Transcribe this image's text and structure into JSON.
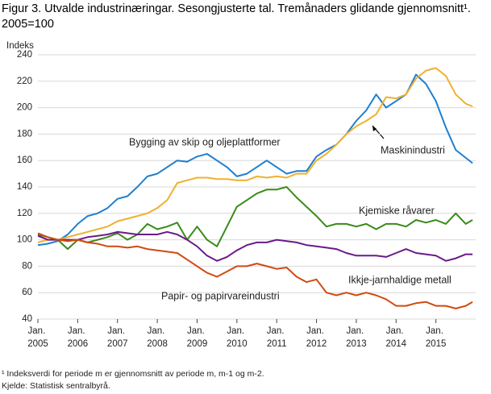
{
  "chart_data": {
    "type": "line",
    "title": "Figur 3. Utvalde industrinæringar. Sesongjusterte tal. Tremånaders glidande gjennomsnitt¹. 2005=100",
    "y_label": "Indeks",
    "footnote": "¹ Indeksverdi for periode m er gjennomsnitt av periode m, m-1 og m-2.",
    "source": "Kjelde: Statistisk sentralbyrå.",
    "x": [
      2005,
      2005.25,
      2005.5,
      2005.75,
      2006,
      2006.25,
      2006.5,
      2006.75,
      2007,
      2007.25,
      2007.5,
      2007.75,
      2008,
      2008.25,
      2008.5,
      2008.75,
      2009,
      2009.25,
      2009.5,
      2009.75,
      2010,
      2010.25,
      2010.5,
      2010.75,
      2011,
      2011.25,
      2011.5,
      2011.75,
      2012,
      2012.25,
      2012.5,
      2012.75,
      2013,
      2013.25,
      2013.5,
      2013.75,
      2014,
      2014.25,
      2014.5,
      2014.75,
      2015,
      2015.25,
      2015.5,
      2015.75,
      2015.92
    ],
    "xlim": [
      2005,
      2016
    ],
    "xticks": [
      {
        "value": 2005,
        "label": "Jan. 2005"
      },
      {
        "value": 2006,
        "label": "Jan. 2006"
      },
      {
        "value": 2007,
        "label": "Jan. 2007"
      },
      {
        "value": 2008,
        "label": "Jan. 2008"
      },
      {
        "value": 2009,
        "label": "Jan. 2009"
      },
      {
        "value": 2010,
        "label": "Jan. 2010"
      },
      {
        "value": 2011,
        "label": "Jan. 2011"
      },
      {
        "value": 2012,
        "label": "Jan. 2012"
      },
      {
        "value": 2013,
        "label": "Jan. 2013"
      },
      {
        "value": 2014,
        "label": "Jan. 2014"
      },
      {
        "value": 2015,
        "label": "Jan. 2015"
      }
    ],
    "ylim": [
      40,
      240
    ],
    "yticks": [
      40,
      60,
      80,
      100,
      120,
      140,
      160,
      180,
      200,
      220,
      240
    ],
    "grid": true,
    "series": [
      {
        "name": "Maskinindustri",
        "color": "#1f7fd0",
        "values": [
          96,
          97,
          99,
          104,
          112,
          118,
          120,
          124,
          131,
          133,
          140,
          148,
          150,
          155,
          160,
          159,
          163,
          165,
          160,
          155,
          148,
          150,
          155,
          160,
          155,
          150,
          152,
          152,
          163,
          168,
          172,
          180,
          190,
          198,
          210,
          200,
          205,
          210,
          225,
          218,
          205,
          185,
          168,
          162,
          158
        ]
      },
      {
        "name": "Bygging av skip og oljeplattformer",
        "color": "#f0b030",
        "values": [
          98,
          100,
          100,
          102,
          104,
          106,
          108,
          110,
          114,
          116,
          118,
          120,
          124,
          130,
          143,
          145,
          147,
          147,
          146,
          146,
          145,
          145,
          148,
          147,
          148,
          147,
          150,
          150,
          160,
          165,
          172,
          180,
          186,
          190,
          195,
          208,
          207,
          210,
          222,
          228,
          230,
          224,
          210,
          203,
          201
        ]
      },
      {
        "name": "Kjemiske  råvarer",
        "color": "#3a8a1a",
        "values": [
          104,
          102,
          100,
          93,
          100,
          98,
          100,
          102,
          105,
          100,
          104,
          112,
          108,
          110,
          113,
          100,
          110,
          100,
          95,
          110,
          125,
          130,
          135,
          138,
          138,
          140,
          132,
          125,
          118,
          110,
          112,
          112,
          110,
          112,
          108,
          112,
          112,
          110,
          115,
          113,
          115,
          112,
          120,
          112,
          115
        ]
      },
      {
        "name": "Ikkje-jarnhaldige  metall",
        "color": "#6a1a8a",
        "values": [
          103,
          100,
          100,
          100,
          100,
          102,
          103,
          104,
          106,
          105,
          104,
          104,
          104,
          106,
          104,
          100,
          95,
          88,
          84,
          87,
          92,
          96,
          98,
          98,
          100,
          99,
          98,
          96,
          95,
          94,
          93,
          90,
          88,
          88,
          88,
          87,
          90,
          93,
          90,
          89,
          88,
          84,
          86,
          89,
          89
        ]
      },
      {
        "name": "Papir- og papirvareindustri",
        "color": "#d04a10",
        "values": [
          105,
          102,
          100,
          99,
          100,
          98,
          97,
          95,
          95,
          94,
          95,
          93,
          92,
          91,
          90,
          85,
          80,
          75,
          72,
          76,
          80,
          80,
          82,
          80,
          78,
          79,
          72,
          68,
          70,
          60,
          58,
          60,
          58,
          60,
          58,
          55,
          50,
          50,
          52,
          53,
          50,
          50,
          48,
          50,
          53
        ]
      }
    ]
  }
}
